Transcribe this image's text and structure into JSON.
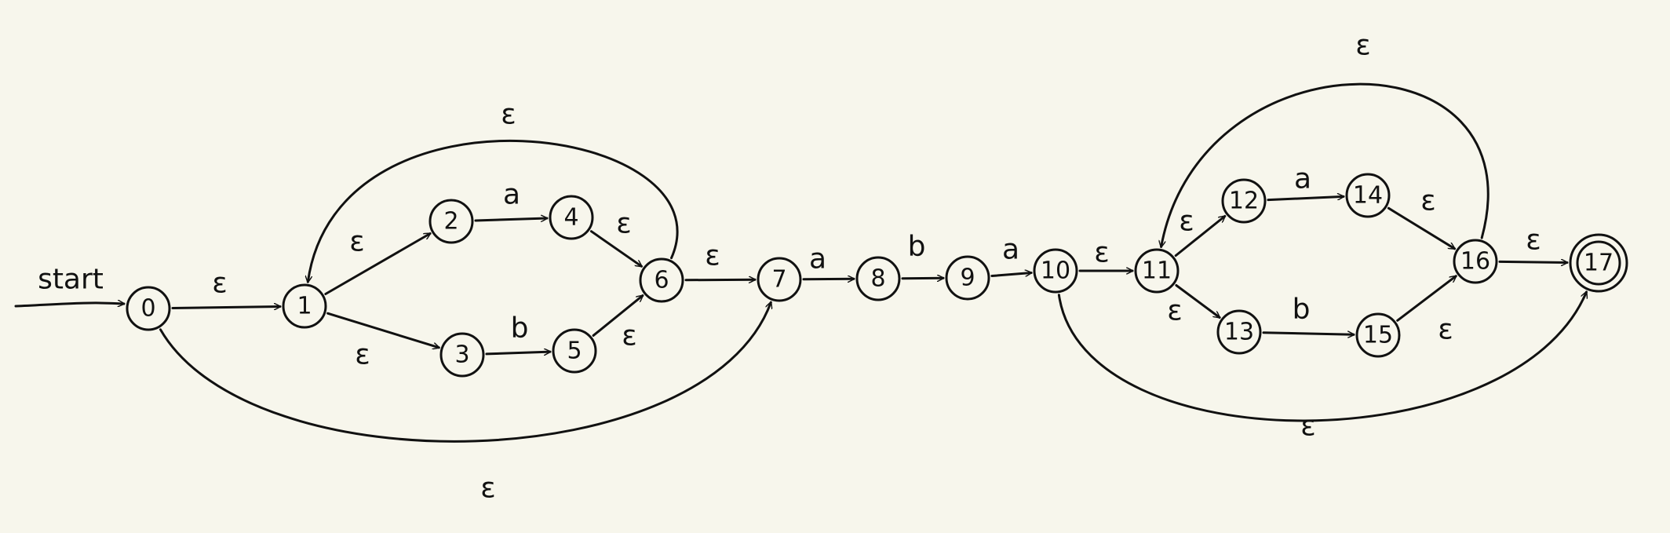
{
  "start_label": "start",
  "colors": {
    "background": "#f7f6ec",
    "ink": "#111111"
  },
  "states": [
    {
      "id": "0",
      "label": "0",
      "accepting": false
    },
    {
      "id": "1",
      "label": "1",
      "accepting": false
    },
    {
      "id": "2",
      "label": "2",
      "accepting": false
    },
    {
      "id": "3",
      "label": "3",
      "accepting": false
    },
    {
      "id": "4",
      "label": "4",
      "accepting": false
    },
    {
      "id": "5",
      "label": "5",
      "accepting": false
    },
    {
      "id": "6",
      "label": "6",
      "accepting": false
    },
    {
      "id": "7",
      "label": "7",
      "accepting": false
    },
    {
      "id": "8",
      "label": "8",
      "accepting": false
    },
    {
      "id": "9",
      "label": "9",
      "accepting": false
    },
    {
      "id": "10",
      "label": "10",
      "accepting": false
    },
    {
      "id": "11",
      "label": "11",
      "accepting": false
    },
    {
      "id": "12",
      "label": "12",
      "accepting": false
    },
    {
      "id": "13",
      "label": "13",
      "accepting": false
    },
    {
      "id": "14",
      "label": "14",
      "accepting": false
    },
    {
      "id": "15",
      "label": "15",
      "accepting": false
    },
    {
      "id": "16",
      "label": "16",
      "accepting": false
    },
    {
      "id": "17",
      "label": "17",
      "accepting": true
    }
  ],
  "transitions": [
    {
      "from": "0",
      "to": "1",
      "label": "ε"
    },
    {
      "from": "1",
      "to": "2",
      "label": "ε"
    },
    {
      "from": "1",
      "to": "3",
      "label": "ε"
    },
    {
      "from": "2",
      "to": "4",
      "label": "a"
    },
    {
      "from": "3",
      "to": "5",
      "label": "b"
    },
    {
      "from": "4",
      "to": "6",
      "label": "ε"
    },
    {
      "from": "5",
      "to": "6",
      "label": "ε"
    },
    {
      "from": "6",
      "to": "1",
      "label": "ε"
    },
    {
      "from": "6",
      "to": "7",
      "label": "ε"
    },
    {
      "from": "0",
      "to": "7",
      "label": "ε"
    },
    {
      "from": "7",
      "to": "8",
      "label": "a"
    },
    {
      "from": "8",
      "to": "9",
      "label": "b"
    },
    {
      "from": "9",
      "to": "10",
      "label": "a"
    },
    {
      "from": "10",
      "to": "11",
      "label": "ε"
    },
    {
      "from": "11",
      "to": "12",
      "label": "ε"
    },
    {
      "from": "11",
      "to": "13",
      "label": "ε"
    },
    {
      "from": "12",
      "to": "14",
      "label": "a"
    },
    {
      "from": "13",
      "to": "15",
      "label": "b"
    },
    {
      "from": "14",
      "to": "16",
      "label": "ε"
    },
    {
      "from": "15",
      "to": "16",
      "label": "ε"
    },
    {
      "from": "16",
      "to": "11",
      "label": "ε"
    },
    {
      "from": "16",
      "to": "17",
      "label": "ε"
    },
    {
      "from": "10",
      "to": "17",
      "label": "ε"
    }
  ]
}
